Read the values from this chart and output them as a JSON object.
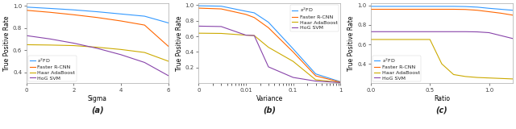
{
  "fig_width": 6.4,
  "fig_height": 1.6,
  "dpi": 100,
  "colors": {
    "s2fd": "#3399ff",
    "faster_rcnn": "#ff6600",
    "haar_adaboost": "#ccaa00",
    "hog_svm": "#8844aa"
  },
  "subplot_a": {
    "xlabel": "Sigma",
    "ylabel": "True Positive Rate",
    "xlim": [
      0,
      6
    ],
    "ylim": [
      0.3,
      1.02
    ],
    "yticks": [
      0.4,
      0.6,
      0.8,
      1.0
    ],
    "xticks": [
      0,
      2,
      4,
      6
    ],
    "legend_loc": "lower left",
    "label": "(a)",
    "s2fd": [
      0.987,
      0.975,
      0.962,
      0.945,
      0.925,
      0.905,
      0.845
    ],
    "faster_rcnn": [
      0.958,
      0.94,
      0.918,
      0.893,
      0.862,
      0.825,
      0.635
    ],
    "haar_adaboost": [
      0.648,
      0.645,
      0.64,
      0.625,
      0.605,
      0.578,
      0.5
    ],
    "hog_svm": [
      0.73,
      0.7,
      0.662,
      0.615,
      0.558,
      0.488,
      0.37
    ],
    "sigma_x": [
      0,
      1,
      2,
      3,
      4,
      5,
      6
    ]
  },
  "subplot_b": {
    "xlabel": "Variance",
    "ylabel": "True Positive Rate",
    "ylim": [
      0.0,
      1.02
    ],
    "yticks": [
      0.2,
      0.4,
      0.6,
      0.8,
      1.0
    ],
    "label": "(b)",
    "x_vals": [
      0.001,
      0.003,
      0.01,
      0.015,
      0.03,
      0.1,
      0.3,
      1.0
    ],
    "s2fd": [
      0.99,
      0.985,
      0.92,
      0.9,
      0.78,
      0.44,
      0.12,
      0.02
    ],
    "faster_rcnn": [
      0.96,
      0.95,
      0.88,
      0.84,
      0.71,
      0.4,
      0.095,
      0.015
    ],
    "haar_adaboost": [
      0.64,
      0.637,
      0.615,
      0.61,
      0.46,
      0.28,
      0.045,
      0.01
    ],
    "hog_svm": [
      0.73,
      0.725,
      0.615,
      0.61,
      0.21,
      0.075,
      0.028,
      0.01
    ]
  },
  "subplot_c": {
    "xlabel": "Ratio",
    "ylabel": "True Positive Rate",
    "xlim": [
      0,
      1.2
    ],
    "ylim": [
      0.2,
      1.02
    ],
    "yticks": [
      0.4,
      0.6,
      0.8,
      1.0
    ],
    "xticks": [
      0,
      0.5,
      1.0
    ],
    "label": "(c)",
    "x_vals": [
      0.0,
      0.1,
      0.2,
      0.3,
      0.4,
      0.5,
      0.6,
      0.7,
      0.8,
      0.9,
      1.0,
      1.1,
      1.2
    ],
    "s2fd": [
      0.99,
      0.99,
      0.99,
      0.99,
      0.99,
      0.99,
      0.99,
      0.99,
      0.988,
      0.982,
      0.97,
      0.96,
      0.95
    ],
    "faster_rcnn": [
      0.96,
      0.96,
      0.96,
      0.96,
      0.96,
      0.96,
      0.96,
      0.96,
      0.958,
      0.95,
      0.935,
      0.92,
      0.9
    ],
    "haar_adaboost": [
      0.65,
      0.65,
      0.65,
      0.65,
      0.65,
      0.65,
      0.4,
      0.29,
      0.27,
      0.26,
      0.255,
      0.25,
      0.245
    ],
    "hog_svm": [
      0.73,
      0.73,
      0.73,
      0.73,
      0.73,
      0.73,
      0.73,
      0.73,
      0.73,
      0.728,
      0.72,
      0.69,
      0.66
    ]
  },
  "legend_labels": {
    "s2fd": "$s^2$FD",
    "faster_rcnn": "Faster R-CNN",
    "haar_adaboost": "Haar AdaBoost",
    "hog_svm": "HoG SVM"
  },
  "font_size": 5.5,
  "label_font_size": 7,
  "tick_font_size": 5,
  "legend_font_size": 4.5
}
